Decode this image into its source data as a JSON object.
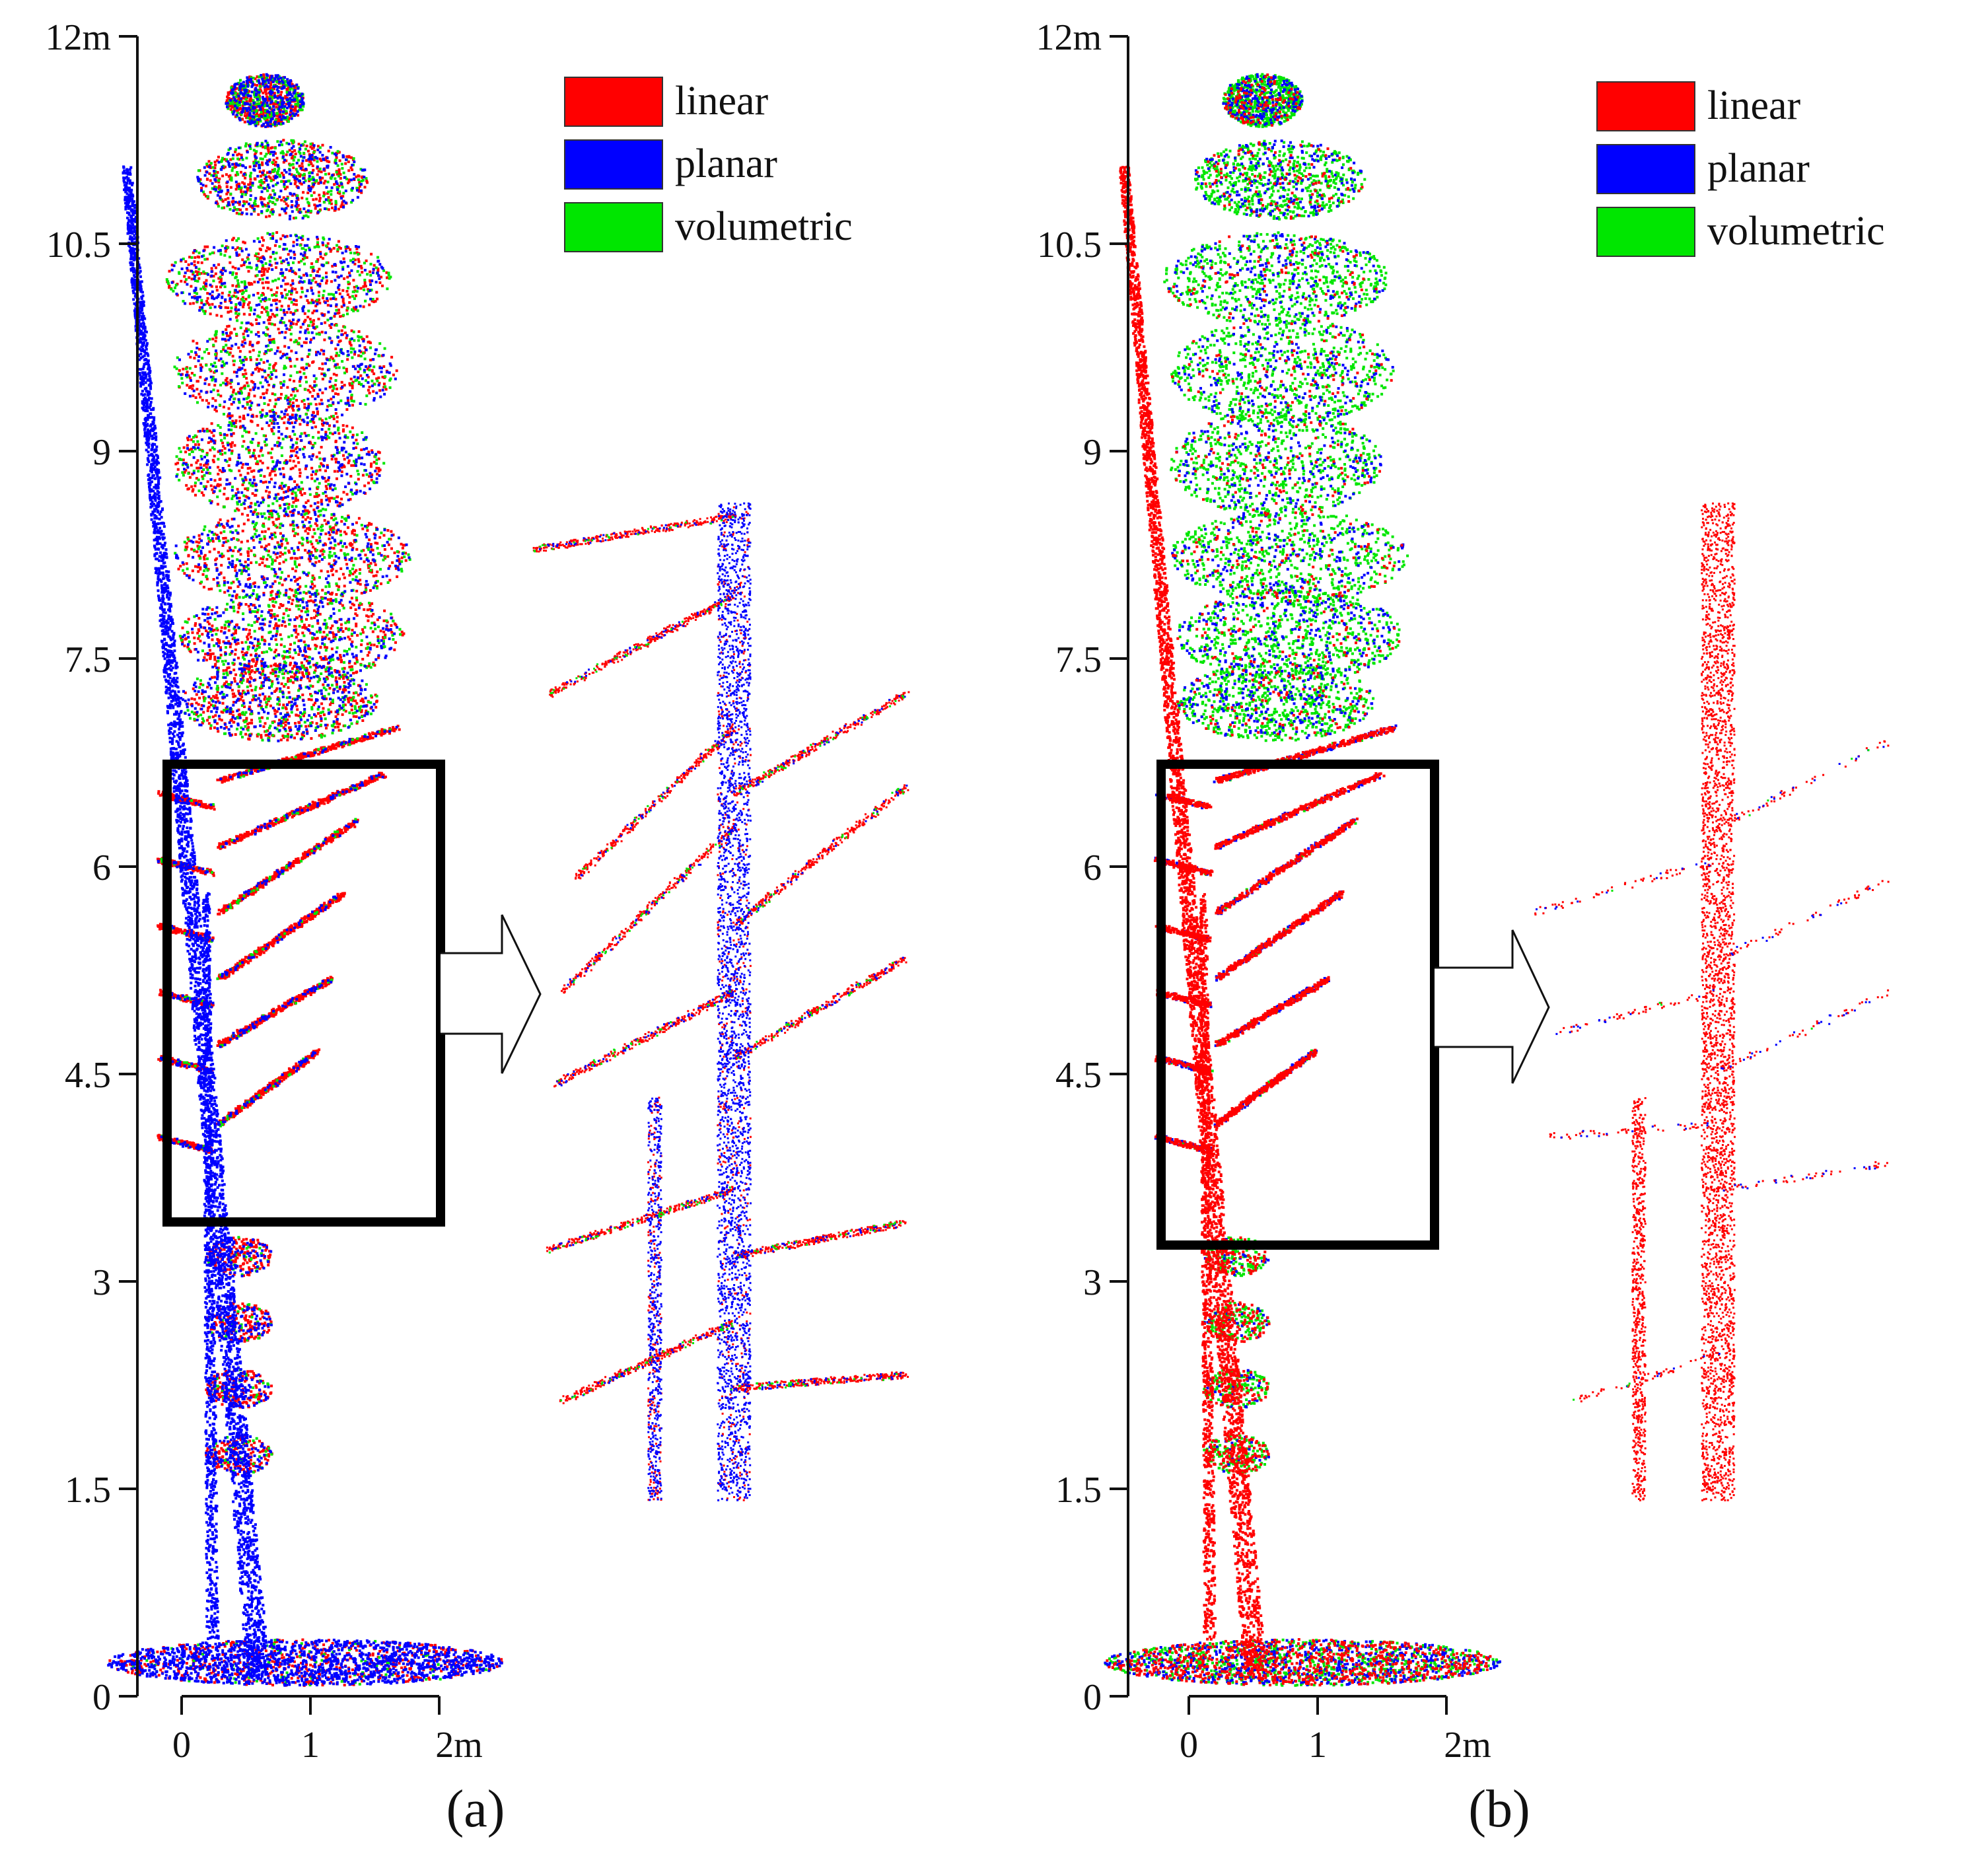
{
  "colors": {
    "linear": "#ff0000",
    "planar": "#0000ff",
    "volumetric": "#00e600",
    "axis": "#111111"
  },
  "panels": [
    {
      "caption": "(a)",
      "legend": [
        {
          "label": "linear",
          "color": "#ff0000"
        },
        {
          "label": "planar",
          "color": "#0000ff"
        },
        {
          "label": "volumetric",
          "color": "#00e600"
        }
      ],
      "y_ticks": [
        "0",
        "1.5",
        "3",
        "4.5",
        "6",
        "7.5",
        "9",
        "10.5",
        "12m"
      ],
      "x_ticks": [
        "0",
        "1",
        "2m"
      ],
      "trunk_class": "planar",
      "crown_class": "mixed",
      "zoom_box_y_range": [
        3.4,
        6.7
      ]
    },
    {
      "caption": "(b)",
      "legend": [
        {
          "label": "linear",
          "color": "#ff0000"
        },
        {
          "label": "planar",
          "color": "#0000ff"
        },
        {
          "label": "volumetric",
          "color": "#00e600"
        }
      ],
      "y_ticks": [
        "0",
        "1.5",
        "3",
        "4.5",
        "6",
        "7.5",
        "9",
        "10.5",
        "12m"
      ],
      "x_ticks": [
        "0",
        "1",
        "2m"
      ],
      "trunk_class": "linear",
      "crown_class": "volumetric",
      "zoom_box_y_range": [
        3.25,
        6.7
      ]
    }
  ]
}
